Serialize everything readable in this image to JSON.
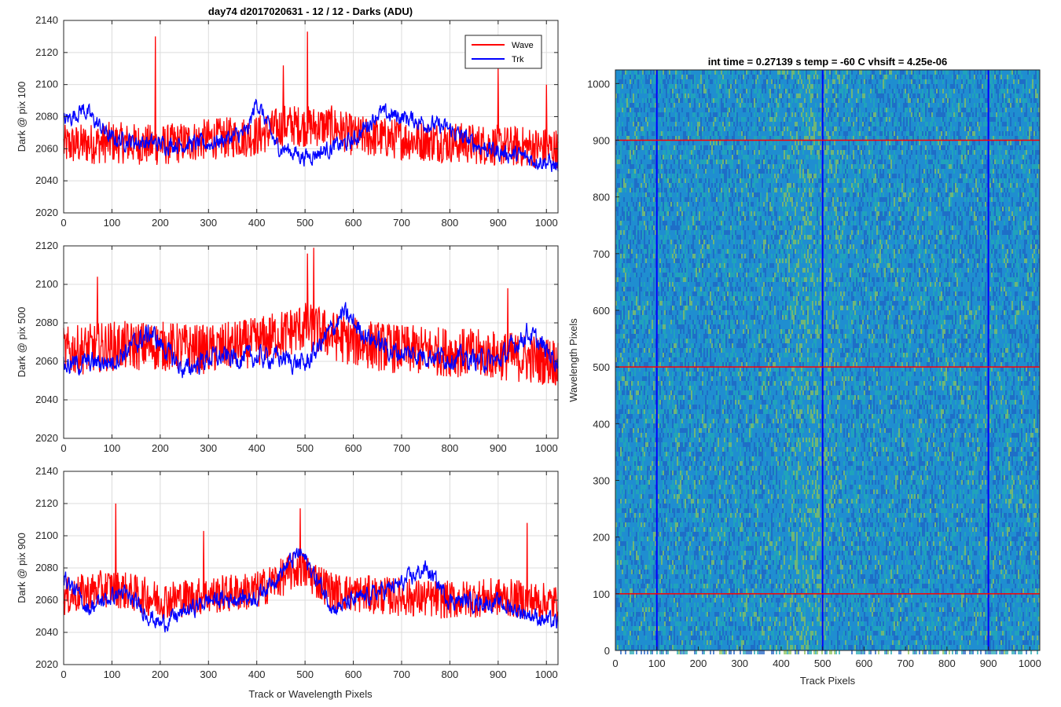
{
  "figure_title": "day74 d2017020631 - 12 / 12 - Darks (ADU)",
  "chart_data": [
    {
      "type": "line",
      "ylabel": "Dark @ pix 100",
      "xlim": [
        0,
        1024
      ],
      "ylim": [
        2020,
        2140
      ],
      "xticks": [
        0,
        100,
        200,
        300,
        400,
        500,
        600,
        700,
        800,
        900,
        1000
      ],
      "yticks": [
        2020,
        2040,
        2060,
        2080,
        2100,
        2120,
        2140
      ],
      "grid": true,
      "legend": "top-right",
      "series": [
        {
          "name": "Wave",
          "color": "#ff0000",
          "mean": [
            [
              0,
              2062
            ],
            [
              100,
              2064
            ],
            [
              200,
              2062
            ],
            [
              300,
              2066
            ],
            [
              400,
              2068
            ],
            [
              460,
              2075
            ],
            [
              500,
              2074
            ],
            [
              560,
              2074
            ],
            [
              600,
              2068
            ],
            [
              700,
              2066
            ],
            [
              800,
              2064
            ],
            [
              900,
              2062
            ],
            [
              1024,
              2060
            ]
          ],
          "spread": 13,
          "spikes": [
            [
              190,
              2130
            ],
            [
              505,
              2133
            ],
            [
              900,
              2110
            ],
            [
              1000,
              2100
            ],
            [
              455,
              2112
            ]
          ]
        },
        {
          "name": "Trk",
          "color": "#0000ff",
          "mean": [
            [
              0,
              2077
            ],
            [
              40,
              2085
            ],
            [
              100,
              2066
            ],
            [
              200,
              2063
            ],
            [
              300,
              2063
            ],
            [
              380,
              2070
            ],
            [
              400,
              2090
            ],
            [
              440,
              2062
            ],
            [
              500,
              2055
            ],
            [
              600,
              2065
            ],
            [
              650,
              2082
            ],
            [
              700,
              2080
            ],
            [
              800,
              2072
            ],
            [
              850,
              2063
            ],
            [
              900,
              2058
            ],
            [
              1000,
              2052
            ],
            [
              1024,
              2048
            ]
          ],
          "spread": 6
        }
      ]
    },
    {
      "type": "line",
      "ylabel": "Dark @ pix 500",
      "xlim": [
        0,
        1024
      ],
      "ylim": [
        2020,
        2120
      ],
      "xticks": [
        0,
        100,
        200,
        300,
        400,
        500,
        600,
        700,
        800,
        900,
        1000
      ],
      "yticks": [
        2020,
        2040,
        2060,
        2080,
        2100,
        2120
      ],
      "grid": true,
      "series": [
        {
          "name": "Wave",
          "color": "#ff0000",
          "mean": [
            [
              0,
              2065
            ],
            [
              100,
              2068
            ],
            [
              200,
              2068
            ],
            [
              300,
              2066
            ],
            [
              400,
              2070
            ],
            [
              500,
              2078
            ],
            [
              600,
              2070
            ],
            [
              700,
              2066
            ],
            [
              800,
              2065
            ],
            [
              900,
              2063
            ],
            [
              1024,
              2060
            ]
          ],
          "spread": 13,
          "spikes": [
            [
              518,
              2119
            ],
            [
              505,
              2116
            ],
            [
              70,
              2104
            ],
            [
              920,
              2098
            ]
          ]
        },
        {
          "name": "Trk",
          "color": "#0000ff",
          "mean": [
            [
              0,
              2058
            ],
            [
              100,
              2060
            ],
            [
              180,
              2075
            ],
            [
              250,
              2055
            ],
            [
              300,
              2062
            ],
            [
              400,
              2062
            ],
            [
              450,
              2062
            ],
            [
              500,
              2058
            ],
            [
              580,
              2085
            ],
            [
              620,
              2075
            ],
            [
              680,
              2065
            ],
            [
              800,
              2062
            ],
            [
              900,
              2060
            ],
            [
              960,
              2075
            ],
            [
              1024,
              2060
            ]
          ],
          "spread": 6
        }
      ]
    },
    {
      "type": "line",
      "ylabel": "Dark @ pix 900",
      "xlabel": "Track or Wavelength Pixels",
      "xlim": [
        0,
        1024
      ],
      "ylim": [
        2020,
        2140
      ],
      "xticks": [
        0,
        100,
        200,
        300,
        400,
        500,
        600,
        700,
        800,
        900,
        1000
      ],
      "yticks": [
        2020,
        2040,
        2060,
        2080,
        2100,
        2120,
        2140
      ],
      "grid": true,
      "series": [
        {
          "name": "Wave",
          "color": "#ff0000",
          "mean": [
            [
              0,
              2062
            ],
            [
              100,
              2068
            ],
            [
              200,
              2060
            ],
            [
              300,
              2063
            ],
            [
              400,
              2066
            ],
            [
              490,
              2080
            ],
            [
              560,
              2065
            ],
            [
              700,
              2062
            ],
            [
              800,
              2060
            ],
            [
              900,
              2062
            ],
            [
              1024,
              2058
            ]
          ],
          "spread": 12,
          "spikes": [
            [
              108,
              2120
            ],
            [
              490,
              2117
            ],
            [
              960,
              2108
            ],
            [
              290,
              2103
            ]
          ]
        },
        {
          "name": "Trk",
          "color": "#0000ff",
          "mean": [
            [
              0,
              2075
            ],
            [
              50,
              2055
            ],
            [
              120,
              2065
            ],
            [
              200,
              2045
            ],
            [
              300,
              2060
            ],
            [
              400,
              2062
            ],
            [
              490,
              2090
            ],
            [
              560,
              2055
            ],
            [
              700,
              2070
            ],
            [
              750,
              2080
            ],
            [
              800,
              2060
            ],
            [
              900,
              2058
            ],
            [
              1024,
              2045
            ]
          ],
          "spread": 6
        }
      ]
    },
    {
      "type": "heatmap",
      "title": "int time = 0.27139 s    temp = -60 C    vhsift = 4.25e-06",
      "xlabel": "Track Pixels",
      "ylabel": "Wavelength Pixels",
      "xlim": [
        0,
        1024
      ],
      "ylim": [
        0,
        1024
      ],
      "xticks": [
        0,
        100,
        200,
        300,
        400,
        500,
        600,
        700,
        800,
        900,
        1000
      ],
      "yticks": [
        0,
        100,
        200,
        300,
        400,
        500,
        600,
        700,
        800,
        900,
        1000
      ],
      "colormap": [
        "#1f63c4",
        "#1f8ed0",
        "#21a9b4",
        "#8cc35a"
      ],
      "bright_band_center_x": 470,
      "vertical_markers": {
        "values": [
          100,
          500,
          900
        ],
        "color": "#0000ff"
      },
      "horizontal_markers": {
        "values": [
          100,
          500,
          900
        ],
        "color": "#ff0000"
      }
    }
  ]
}
